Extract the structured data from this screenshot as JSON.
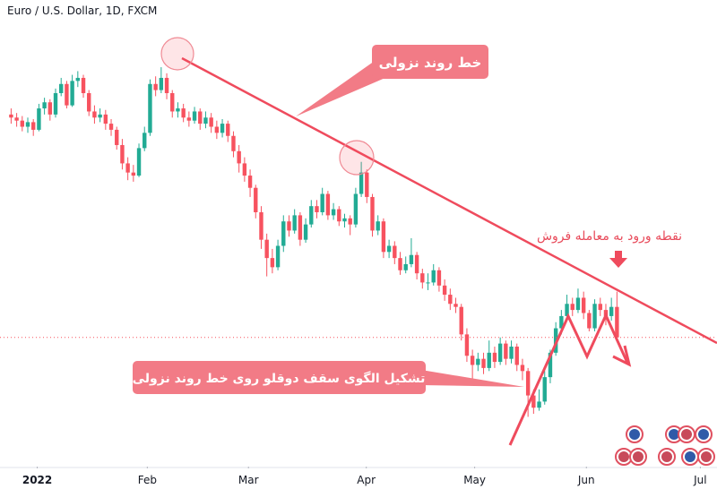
{
  "chart_data": {
    "type": "candlestick",
    "title": "Euro / U.S. Dollar, 1D, FXCM",
    "up_color": "#22ab94",
    "down_color": "#f7525f",
    "xlim": [
      -2,
      127
    ],
    "ylim": [
      1.019,
      1.1715
    ],
    "xticks": [
      {
        "value": 4.7,
        "label": "2022"
      },
      {
        "value": 24.5,
        "label": "Feb"
      },
      {
        "value": 42.7,
        "label": "Mar"
      },
      {
        "value": 63.9,
        "label": "Apr"
      },
      {
        "value": 83.4,
        "label": "May"
      },
      {
        "value": 103.5,
        "label": "Jun"
      },
      {
        "value": 124,
        "label": "Jul"
      }
    ],
    "annotations": [
      "خط روند نزولی",
      "نقطه ورود به معامله فروش",
      "تشکیل الگوی سقف دوقلو روی خط روند نزولی"
    ],
    "candles": [
      [
        1.134,
        1.136,
        1.131,
        1.133
      ],
      [
        1.133,
        1.1345,
        1.13,
        1.132
      ],
      [
        1.132,
        1.1335,
        1.1285,
        1.13
      ],
      [
        1.13,
        1.133,
        1.128,
        1.1315
      ],
      [
        1.1315,
        1.1325,
        1.127,
        1.129
      ],
      [
        1.129,
        1.1375,
        1.1285,
        1.136
      ],
      [
        1.136,
        1.1395,
        1.134,
        1.138
      ],
      [
        1.138,
        1.139,
        1.132,
        1.134
      ],
      [
        1.134,
        1.1425,
        1.133,
        1.141
      ],
      [
        1.141,
        1.146,
        1.14,
        1.144
      ],
      [
        1.144,
        1.145,
        1.136,
        1.137
      ],
      [
        1.137,
        1.147,
        1.1365,
        1.145
      ],
      [
        1.145,
        1.1482,
        1.143,
        1.146
      ],
      [
        1.146,
        1.147,
        1.1395,
        1.141
      ],
      [
        1.141,
        1.142,
        1.1335,
        1.135
      ],
      [
        1.135,
        1.137,
        1.131,
        1.133
      ],
      [
        1.133,
        1.136,
        1.1315,
        1.134
      ],
      [
        1.134,
        1.1355,
        1.129,
        1.131
      ],
      [
        1.131,
        1.1325,
        1.127,
        1.129
      ],
      [
        1.129,
        1.13,
        1.1225,
        1.124
      ],
      [
        1.124,
        1.126,
        1.116,
        1.118
      ],
      [
        1.118,
        1.12,
        1.1125,
        1.115
      ],
      [
        1.115,
        1.1175,
        1.112,
        1.114
      ],
      [
        1.114,
        1.1245,
        1.1135,
        1.123
      ],
      [
        1.123,
        1.13,
        1.122,
        1.128
      ],
      [
        1.128,
        1.1455,
        1.127,
        1.144
      ],
      [
        1.144,
        1.1465,
        1.14,
        1.142
      ],
      [
        1.142,
        1.1495,
        1.141,
        1.146
      ],
      [
        1.146,
        1.1475,
        1.139,
        1.141
      ],
      [
        1.141,
        1.142,
        1.133,
        1.135
      ],
      [
        1.135,
        1.138,
        1.133,
        1.136
      ],
      [
        1.136,
        1.1375,
        1.1315,
        1.133
      ],
      [
        1.133,
        1.135,
        1.13,
        1.132
      ],
      [
        1.132,
        1.1365,
        1.131,
        1.135
      ],
      [
        1.135,
        1.136,
        1.129,
        1.131
      ],
      [
        1.131,
        1.135,
        1.1295,
        1.133
      ],
      [
        1.133,
        1.1345,
        1.128,
        1.13
      ],
      [
        1.13,
        1.132,
        1.126,
        1.128
      ],
      [
        1.128,
        1.1325,
        1.1265,
        1.131
      ],
      [
        1.131,
        1.132,
        1.125,
        1.127
      ],
      [
        1.127,
        1.1285,
        1.12,
        1.122
      ],
      [
        1.122,
        1.124,
        1.115,
        1.118
      ],
      [
        1.118,
        1.12,
        1.112,
        1.114
      ],
      [
        1.114,
        1.116,
        1.107,
        1.11
      ],
      [
        1.11,
        1.111,
        1.1,
        1.102
      ],
      [
        1.102,
        1.104,
        1.09,
        1.093
      ],
      [
        1.093,
        1.095,
        1.081,
        1.087
      ],
      [
        1.087,
        1.09,
        1.082,
        1.084
      ],
      [
        1.084,
        1.093,
        1.083,
        1.091
      ],
      [
        1.091,
        1.101,
        1.089,
        1.099
      ],
      [
        1.099,
        1.101,
        1.094,
        1.096
      ],
      [
        1.096,
        1.103,
        1.095,
        1.101
      ],
      [
        1.101,
        1.102,
        1.091,
        1.093
      ],
      [
        1.093,
        1.1,
        1.092,
        1.098
      ],
      [
        1.098,
        1.106,
        1.097,
        1.104
      ],
      [
        1.104,
        1.106,
        1.1,
        1.102
      ],
      [
        1.102,
        1.11,
        1.101,
        1.108
      ],
      [
        1.108,
        1.109,
        1.0995,
        1.101
      ],
      [
        1.101,
        1.105,
        1.0995,
        1.103
      ],
      [
        1.103,
        1.104,
        1.0975,
        1.099
      ],
      [
        1.099,
        1.1015,
        1.097,
        1.1
      ],
      [
        1.1,
        1.101,
        1.0945,
        1.098
      ],
      [
        1.098,
        1.11,
        1.097,
        1.108
      ],
      [
        1.108,
        1.1185,
        1.107,
        1.115
      ],
      [
        1.115,
        1.116,
        1.105,
        1.107
      ],
      [
        1.107,
        1.108,
        1.094,
        1.096
      ],
      [
        1.096,
        1.101,
        1.0945,
        1.099
      ],
      [
        1.099,
        1.1,
        1.087,
        1.089
      ],
      [
        1.089,
        1.093,
        1.087,
        1.091
      ],
      [
        1.091,
        1.0925,
        1.085,
        1.087
      ],
      [
        1.087,
        1.089,
        1.0815,
        1.083
      ],
      [
        1.083,
        1.0875,
        1.082,
        1.085
      ],
      [
        1.085,
        1.0935,
        1.084,
        1.088
      ],
      [
        1.088,
        1.089,
        1.08,
        1.082
      ],
      [
        1.082,
        1.0835,
        1.077,
        1.079
      ],
      [
        1.079,
        1.082,
        1.0765,
        1.079
      ],
      [
        1.079,
        1.085,
        1.078,
        1.083
      ],
      [
        1.083,
        1.084,
        1.076,
        1.078
      ],
      [
        1.078,
        1.08,
        1.073,
        1.075
      ],
      [
        1.075,
        1.077,
        1.07,
        1.072
      ],
      [
        1.072,
        1.074,
        1.069,
        1.071
      ],
      [
        1.071,
        1.072,
        1.06,
        1.062
      ],
      [
        1.062,
        1.064,
        1.053,
        1.055
      ],
      [
        1.055,
        1.057,
        1.047,
        1.052
      ],
      [
        1.052,
        1.056,
        1.05,
        1.054
      ],
      [
        1.054,
        1.056,
        1.049,
        1.051
      ],
      [
        1.051,
        1.06,
        1.05,
        1.056
      ],
      [
        1.056,
        1.058,
        1.051,
        1.053
      ],
      [
        1.053,
        1.061,
        1.052,
        1.059
      ],
      [
        1.059,
        1.06,
        1.052,
        1.054
      ],
      [
        1.054,
        1.06,
        1.0525,
        1.058
      ],
      [
        1.058,
        1.059,
        1.05,
        1.052
      ],
      [
        1.052,
        1.054,
        1.047,
        1.05
      ],
      [
        1.05,
        1.051,
        1.035,
        1.042
      ],
      [
        1.042,
        1.044,
        1.036,
        1.038
      ],
      [
        1.038,
        1.044,
        1.037,
        1.04
      ],
      [
        1.04,
        1.05,
        1.039,
        1.048
      ],
      [
        1.048,
        1.057,
        1.046,
        1.056
      ],
      [
        1.056,
        1.066,
        1.055,
        1.064
      ],
      [
        1.064,
        1.07,
        1.062,
        1.068
      ],
      [
        1.068,
        1.075,
        1.067,
        1.072
      ],
      [
        1.072,
        1.074,
        1.068,
        1.07
      ],
      [
        1.07,
        1.077,
        1.069,
        1.074
      ],
      [
        1.074,
        1.076,
        1.067,
        1.069
      ],
      [
        1.069,
        1.07,
        1.063,
        1.064
      ],
      [
        1.064,
        1.0735,
        1.063,
        1.072
      ],
      [
        1.072,
        1.074,
        1.068,
        1.07
      ],
      [
        1.07,
        1.072,
        1.065,
        1.068
      ],
      [
        1.068,
        1.074,
        1.0665,
        1.071
      ],
      [
        1.071,
        1.076,
        1.06,
        1.061
      ]
    ]
  }
}
